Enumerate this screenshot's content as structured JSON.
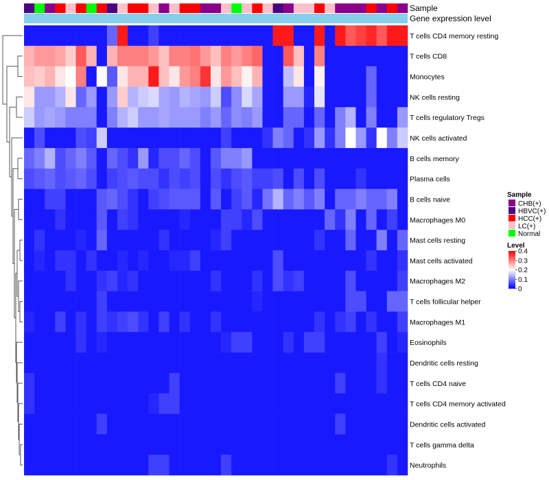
{
  "chart_data": {
    "type": "heatmap",
    "title": "",
    "annotation_tracks": [
      "Sample",
      "Gene expression level"
    ],
    "rows": [
      "T cells CD4 memory resting",
      "T cells CD8",
      "Monocytes",
      "NK cells resting",
      "T cells regulatory  Tregs",
      "NK cells activated",
      "B cells memory",
      "Plasma cells",
      "B cells naive",
      "Macrophages M0",
      "Mast cells resting",
      "Mast cells activated",
      "Macrophages M2",
      "T cells follicular helper",
      "Macrophages M1",
      "Eosinophils",
      "Dendritic cells resting",
      "T cells CD4 naive",
      "T cells CD4 memory activated",
      "Dendritic cells activated",
      "T cells gamma delta",
      "Neutrophils"
    ],
    "sample_groups": [
      "HBVC(+)",
      "Normal",
      "CHB(+)",
      "HCC(+)",
      "LC(+)",
      "HCC(+)",
      "Normal",
      "HCC(+)",
      "HBVC(+)",
      "LC(+)",
      "HCC(+)",
      "HCC(+)",
      "LC(+)",
      "CHB(+)",
      "LC(+)",
      "HCC(+)",
      "HCC(+)",
      "CHB(+)",
      "CHB(+)",
      "LC(+)",
      "Normal",
      "LC(+)",
      "HCC(+)",
      "LC(+)",
      "HBVC(+)",
      "CHB(+)",
      "LC(+)",
      "LC(+)",
      "HCC(+)",
      "LC(+)",
      "CHB(+)",
      "CHB(+)",
      "CHB(+)",
      "HCC(+)",
      "CHB(+)",
      "HCC(+)",
      "CHB(+)"
    ],
    "values": [
      [
        0.02,
        0.02,
        0.02,
        0.02,
        0.02,
        0.02,
        0.02,
        0.02,
        0.08,
        0.38,
        0.02,
        0.02,
        0.05,
        0.02,
        0.02,
        0.02,
        0.02,
        0.02,
        0.02,
        0.02,
        0.02,
        0.02,
        0.02,
        0.02,
        0.38,
        0.38,
        0.02,
        0.02,
        0.38,
        0.02,
        0.38,
        0.33,
        0.35,
        0.37,
        0.33,
        0.38,
        0.38
      ],
      [
        0.26,
        0.28,
        0.28,
        0.27,
        0.24,
        0.33,
        0.26,
        0.02,
        0.26,
        0.3,
        0.3,
        0.3,
        0.28,
        0.25,
        0.3,
        0.3,
        0.31,
        0.28,
        0.25,
        0.3,
        0.28,
        0.3,
        0.32,
        0.02,
        0.02,
        0.33,
        0.25,
        0.02,
        0.3,
        0.02,
        0.02,
        0.02,
        0.02,
        0.02,
        0.02,
        0.02,
        0.02
      ],
      [
        0.25,
        0.24,
        0.26,
        0.22,
        0.2,
        0.3,
        0.02,
        0.2,
        0.07,
        0.22,
        0.26,
        0.26,
        0.38,
        0.25,
        0.22,
        0.28,
        0.3,
        0.36,
        0.22,
        0.28,
        0.25,
        0.21,
        0.26,
        0.02,
        0.02,
        0.15,
        0.22,
        0.02,
        0.21,
        0.02,
        0.02,
        0.02,
        0.02,
        0.08,
        0.02,
        0.02,
        0.02
      ],
      [
        0.22,
        0.12,
        0.12,
        0.14,
        0.22,
        0.08,
        0.12,
        0.02,
        0.12,
        0.24,
        0.14,
        0.16,
        0.17,
        0.13,
        0.12,
        0.14,
        0.13,
        0.12,
        0.16,
        0.06,
        0.11,
        0.17,
        0.13,
        0.02,
        0.02,
        0.12,
        0.12,
        0.03,
        0.18,
        0.02,
        0.02,
        0.02,
        0.02,
        0.08,
        0.02,
        0.02,
        0.02
      ],
      [
        0.16,
        0.12,
        0.13,
        0.12,
        0.1,
        0.1,
        0.1,
        0.02,
        0.1,
        0.14,
        0.16,
        0.12,
        0.12,
        0.13,
        0.12,
        0.12,
        0.12,
        0.1,
        0.12,
        0.08,
        0.11,
        0.1,
        0.12,
        0.02,
        0.02,
        0.08,
        0.08,
        0.02,
        0.08,
        0.02,
        0.1,
        0.14,
        0.02,
        0.1,
        0.02,
        0.02,
        0.12
      ],
      [
        0.02,
        0.06,
        0.02,
        0.02,
        0.02,
        0.06,
        0.05,
        0.16,
        0.02,
        0.02,
        0.02,
        0.02,
        0.02,
        0.02,
        0.02,
        0.02,
        0.02,
        0.02,
        0.02,
        0.05,
        0.02,
        0.02,
        0.02,
        0.04,
        0.1,
        0.08,
        0.02,
        0.04,
        0.12,
        0.04,
        0.1,
        0.2,
        0.12,
        0.04,
        0.2,
        0.1,
        0.16
      ],
      [
        0.08,
        0.1,
        0.14,
        0.06,
        0.08,
        0.1,
        0.07,
        0.02,
        0.08,
        0.06,
        0.04,
        0.12,
        0.03,
        0.06,
        0.06,
        0.08,
        0.06,
        0.02,
        0.07,
        0.1,
        0.1,
        0.12,
        0.02,
        0.02,
        0.02,
        0.02,
        0.02,
        0.02,
        0.02,
        0.02,
        0.02,
        0.02,
        0.02,
        0.02,
        0.02,
        0.02,
        0.02
      ],
      [
        0.06,
        0.07,
        0.08,
        0.06,
        0.07,
        0.08,
        0.06,
        0.02,
        0.05,
        0.06,
        0.07,
        0.06,
        0.06,
        0.04,
        0.06,
        0.05,
        0.06,
        0.02,
        0.06,
        0.04,
        0.06,
        0.07,
        0.05,
        0.05,
        0.06,
        0.02,
        0.06,
        0.02,
        0.06,
        0.02,
        0.02,
        0.02,
        0.04,
        0.02,
        0.02,
        0.02,
        0.02
      ],
      [
        0.02,
        0.02,
        0.05,
        0.05,
        0.02,
        0.02,
        0.02,
        0.07,
        0.08,
        0.06,
        0.04,
        0.02,
        0.05,
        0.06,
        0.07,
        0.07,
        0.07,
        0.02,
        0.07,
        0.02,
        0.05,
        0.07,
        0.03,
        0.09,
        0.14,
        0.08,
        0.1,
        0.07,
        0.1,
        0.02,
        0.08,
        0.08,
        0.1,
        0.08,
        0.08,
        0.1,
        0.02
      ],
      [
        0.02,
        0.02,
        0.02,
        0.04,
        0.02,
        0.02,
        0.02,
        0.07,
        0.02,
        0.05,
        0.04,
        0.02,
        0.02,
        0.02,
        0.02,
        0.03,
        0.02,
        0.02,
        0.02,
        0.05,
        0.05,
        0.03,
        0.06,
        0.02,
        0.02,
        0.02,
        0.02,
        0.02,
        0.02,
        0.08,
        0.04,
        0.1,
        0.02,
        0.08,
        0.02,
        0.05,
        0.02
      ],
      [
        0.02,
        0.04,
        0.02,
        0.02,
        0.02,
        0.03,
        0.02,
        0.08,
        0.02,
        0.02,
        0.02,
        0.02,
        0.02,
        0.04,
        0.02,
        0.02,
        0.02,
        0.02,
        0.03,
        0.05,
        0.02,
        0.02,
        0.02,
        0.02,
        0.02,
        0.02,
        0.02,
        0.02,
        0.04,
        0.02,
        0.02,
        0.08,
        0.02,
        0.02,
        0.1,
        0.02,
        0.08
      ],
      [
        0.02,
        0.03,
        0.02,
        0.04,
        0.04,
        0.02,
        0.04,
        0.02,
        0.02,
        0.03,
        0.02,
        0.03,
        0.02,
        0.02,
        0.03,
        0.03,
        0.05,
        0.02,
        0.02,
        0.02,
        0.02,
        0.02,
        0.02,
        0.02,
        0.06,
        0.02,
        0.02,
        0.02,
        0.02,
        0.02,
        0.02,
        0.02,
        0.02,
        0.04,
        0.02,
        0.02,
        0.04
      ],
      [
        0.02,
        0.02,
        0.02,
        0.02,
        0.04,
        0.02,
        0.02,
        0.04,
        0.05,
        0.03,
        0.04,
        0.02,
        0.02,
        0.02,
        0.02,
        0.02,
        0.02,
        0.02,
        0.04,
        0.02,
        0.02,
        0.02,
        0.04,
        0.02,
        0.06,
        0.04,
        0.05,
        0.02,
        0.02,
        0.02,
        0.02,
        0.06,
        0.02,
        0.02,
        0.02,
        0.02,
        0.05
      ],
      [
        0.02,
        0.02,
        0.02,
        0.02,
        0.02,
        0.02,
        0.02,
        0.05,
        0.02,
        0.02,
        0.02,
        0.02,
        0.02,
        0.02,
        0.02,
        0.02,
        0.02,
        0.02,
        0.02,
        0.02,
        0.02,
        0.02,
        0.03,
        0.02,
        0.02,
        0.02,
        0.02,
        0.02,
        0.02,
        0.02,
        0.02,
        0.06,
        0.06,
        0.02,
        0.02,
        0.08,
        0.08
      ],
      [
        0.03,
        0.02,
        0.02,
        0.05,
        0.02,
        0.04,
        0.02,
        0.05,
        0.04,
        0.05,
        0.06,
        0.04,
        0.02,
        0.05,
        0.02,
        0.04,
        0.02,
        0.02,
        0.04,
        0.02,
        0.02,
        0.02,
        0.02,
        0.02,
        0.02,
        0.02,
        0.02,
        0.02,
        0.04,
        0.02,
        0.04,
        0.05,
        0.02,
        0.04,
        0.02,
        0.02,
        0.05
      ],
      [
        0.02,
        0.02,
        0.02,
        0.02,
        0.02,
        0.04,
        0.02,
        0.03,
        0.02,
        0.02,
        0.02,
        0.02,
        0.02,
        0.02,
        0.02,
        0.02,
        0.02,
        0.02,
        0.02,
        0.03,
        0.05,
        0.05,
        0.02,
        0.02,
        0.02,
        0.04,
        0.02,
        0.05,
        0.05,
        0.02,
        0.02,
        0.02,
        0.02,
        0.02,
        0.05,
        0.02,
        0.03
      ],
      [
        0.02,
        0.02,
        0.02,
        0.02,
        0.02,
        0.02,
        0.02,
        0.02,
        0.02,
        0.02,
        0.02,
        0.02,
        0.02,
        0.02,
        0.02,
        0.02,
        0.02,
        0.02,
        0.02,
        0.02,
        0.02,
        0.02,
        0.02,
        0.02,
        0.02,
        0.02,
        0.02,
        0.02,
        0.02,
        0.02,
        0.02,
        0.02,
        0.02,
        0.02,
        0.04,
        0.02,
        0.02
      ],
      [
        0.04,
        0.02,
        0.02,
        0.02,
        0.02,
        0.02,
        0.02,
        0.02,
        0.02,
        0.02,
        0.02,
        0.02,
        0.02,
        0.02,
        0.05,
        0.02,
        0.02,
        0.02,
        0.02,
        0.02,
        0.02,
        0.02,
        0.02,
        0.02,
        0.02,
        0.02,
        0.02,
        0.02,
        0.02,
        0.02,
        0.05,
        0.02,
        0.02,
        0.02,
        0.04,
        0.02,
        0.02
      ],
      [
        0.04,
        0.02,
        0.02,
        0.02,
        0.02,
        0.02,
        0.02,
        0.02,
        0.02,
        0.02,
        0.02,
        0.02,
        0.03,
        0.05,
        0.05,
        0.02,
        0.02,
        0.02,
        0.02,
        0.02,
        0.02,
        0.02,
        0.02,
        0.02,
        0.02,
        0.02,
        0.02,
        0.02,
        0.02,
        0.02,
        0.02,
        0.02,
        0.02,
        0.02,
        0.02,
        0.02,
        0.02
      ],
      [
        0.02,
        0.02,
        0.02,
        0.02,
        0.02,
        0.02,
        0.02,
        0.05,
        0.02,
        0.02,
        0.02,
        0.02,
        0.02,
        0.02,
        0.02,
        0.02,
        0.02,
        0.02,
        0.02,
        0.02,
        0.02,
        0.02,
        0.02,
        0.02,
        0.02,
        0.02,
        0.02,
        0.02,
        0.02,
        0.02,
        0.05,
        0.02,
        0.02,
        0.02,
        0.02,
        0.02,
        0.02
      ],
      [
        0.02,
        0.02,
        0.02,
        0.02,
        0.02,
        0.02,
        0.02,
        0.02,
        0.02,
        0.02,
        0.02,
        0.02,
        0.02,
        0.02,
        0.02,
        0.02,
        0.02,
        0.02,
        0.02,
        0.02,
        0.02,
        0.02,
        0.02,
        0.02,
        0.02,
        0.02,
        0.02,
        0.02,
        0.02,
        0.02,
        0.02,
        0.02,
        0.02,
        0.02,
        0.02,
        0.02,
        0.02
      ],
      [
        0.02,
        0.02,
        0.02,
        0.02,
        0.02,
        0.02,
        0.02,
        0.02,
        0.02,
        0.02,
        0.02,
        0.02,
        0.05,
        0.05,
        0.02,
        0.02,
        0.02,
        0.02,
        0.02,
        0.05,
        0.02,
        0.02,
        0.02,
        0.02,
        0.02,
        0.02,
        0.02,
        0.02,
        0.02,
        0.02,
        0.02,
        0.02,
        0.02,
        0.02,
        0.02,
        0.04,
        0.02
      ]
    ],
    "color_scale": {
      "min": 0,
      "max": 0.4,
      "low": "#0000ff",
      "mid": "#ffffff",
      "high": "#ff0000"
    },
    "legend": {
      "sample": {
        "title": "Sample",
        "items": [
          {
            "label": "CHB(+)",
            "color": "#8b008b"
          },
          {
            "label": "HBVC(+)",
            "color": "#4b0082"
          },
          {
            "label": "HCC(+)",
            "color": "#ff0000"
          },
          {
            "label": "LC(+)",
            "color": "#ffc0cb"
          },
          {
            "label": "Normal",
            "color": "#00ff00"
          }
        ]
      },
      "level": {
        "title": "Level",
        "ticks": [
          "0.4",
          "0.3",
          "0.2",
          "0.1",
          "0"
        ]
      }
    },
    "gene_expression_color": "#87ceeb",
    "dendrogram": "rows"
  }
}
